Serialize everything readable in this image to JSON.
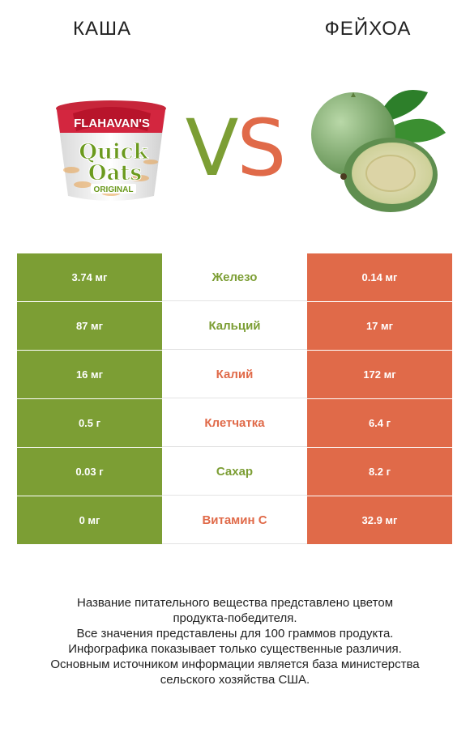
{
  "products": {
    "left": {
      "name": "КАША",
      "image": "quick-oats-cup-icon"
    },
    "right": {
      "name": "ФЕЙХОА",
      "image": "feijoa-fruit-icon"
    }
  },
  "vs": {
    "v": "V",
    "s": "S"
  },
  "colors": {
    "left_winner": "#7c9e34",
    "right_winner": "#e06a49"
  },
  "product_packaging": {
    "brand": "FLAHAVAN'S",
    "line1": "Quick",
    "line2": "Oats",
    "variant": "ORIGINAL"
  },
  "rows": [
    {
      "left": "3.74 мг",
      "nutrient": "Железо",
      "right": "0.14 мг",
      "winner": "left"
    },
    {
      "left": "87 мг",
      "nutrient": "Кальций",
      "right": "17 мг",
      "winner": "left"
    },
    {
      "left": "16 мг",
      "nutrient": "Калий",
      "right": "172 мг",
      "winner": "right"
    },
    {
      "left": "0.5 г",
      "nutrient": "Клетчатка",
      "right": "6.4 г",
      "winner": "right"
    },
    {
      "left": "0.03 г",
      "nutrient": "Сахар",
      "right": "8.2 г",
      "winner": "left"
    },
    {
      "left": "0 мг",
      "nutrient": "Витамин C",
      "right": "32.9 мг",
      "winner": "right"
    }
  ],
  "footer": {
    "line1": "Название питательного вещества представлено цветом",
    "line2": "продукта-победителя.",
    "line3": "Все значения представлены для 100 граммов продукта.",
    "line4": "Инфографика показывает только существенные различия.",
    "line5": "Основным источником информации является база министерства",
    "line6": "сельского хозяйства США."
  }
}
